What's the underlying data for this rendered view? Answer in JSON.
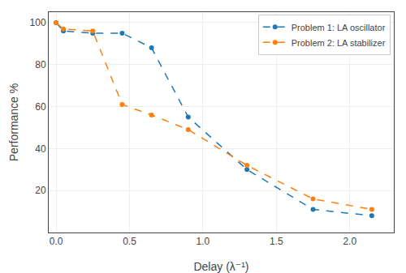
{
  "chart_data": {
    "type": "line",
    "xlabel": "Delay (λ⁻¹)",
    "ylabel": "Performance %",
    "x": [
      0.0,
      0.05,
      0.25,
      0.45,
      0.65,
      0.9,
      1.3,
      1.75,
      2.15
    ],
    "series": [
      {
        "name": "Problem 1: LA oscillator",
        "values": [
          100,
          96,
          95,
          95,
          88,
          55,
          30,
          11,
          8
        ]
      },
      {
        "name": "Problem 2: LA stabilizer",
        "values": [
          100,
          97,
          96,
          61,
          56,
          49,
          32,
          16,
          11
        ]
      }
    ],
    "xlim": [
      -0.05,
      2.3
    ],
    "ylim": [
      0,
      105
    ],
    "xticks": [
      {
        "value": 0,
        "label": "0.0"
      },
      0.5,
      {
        "value": 1,
        "label": "1.0"
      },
      1.5,
      {
        "value": 2,
        "label": "2.0"
      }
    ],
    "yticks": [
      20,
      40,
      60,
      80,
      100
    ],
    "grid": true,
    "legend": "upper right",
    "marker": "circle",
    "line_style": "dashed"
  }
}
